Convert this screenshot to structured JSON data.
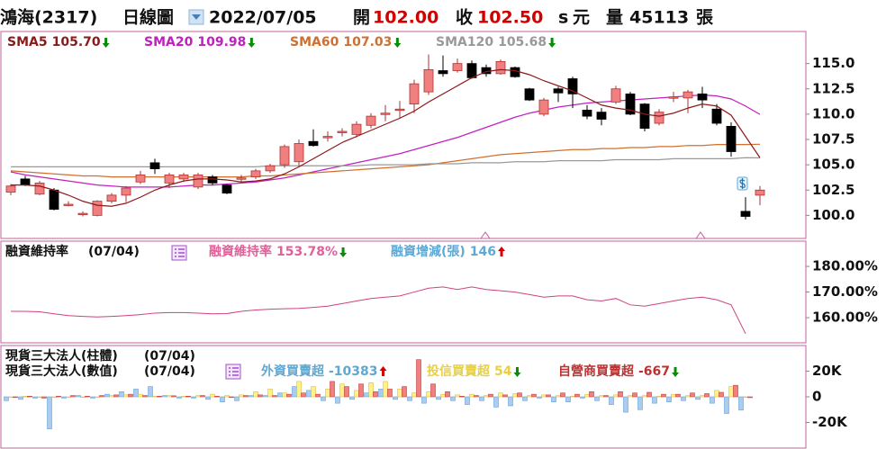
{
  "header": {
    "stock": "鴻海(2317)",
    "period": "日線圖",
    "date": "2022/07/05",
    "open_label": "開",
    "open": "102.00",
    "close_label": "收",
    "close": "102.50",
    "unit_s": "s",
    "unit": "元",
    "volume_label": "量",
    "volume": 45113,
    "volume_unit": "張"
  },
  "chart_data": [
    {
      "type": "candlestick",
      "up_color": "#f08080",
      "down_color": "#000000",
      "ylim": [
        97.9,
        117.9
      ],
      "yticks": [
        {
          "value": 100,
          "label": "100.0"
        },
        {
          "value": 102.5,
          "label": "102.5"
        },
        {
          "value": 105,
          "label": "105.0"
        },
        {
          "value": 107.5,
          "label": "107.5"
        },
        {
          "value": 110,
          "label": "110.0"
        },
        {
          "value": 112.5,
          "label": "112.5"
        },
        {
          "value": 115,
          "label": "115.0"
        }
      ],
      "open": [
        102.3,
        103.6,
        102.1,
        102.5,
        101.1,
        100.1,
        100.0,
        101.4,
        102.0,
        103.3,
        105.2,
        103.2,
        103.6,
        102.8,
        103.8,
        103.0,
        103.6,
        103.8,
        104.4,
        105.0,
        105.3,
        107.3,
        107.7,
        108.2,
        108.0,
        108.9,
        110.0,
        110.4,
        111.0,
        112.2,
        114.3,
        114.3,
        115.0,
        114.6,
        114.0,
        114.6,
        112.5,
        110.0,
        112.5,
        113.5,
        110.4,
        110.2,
        111.2,
        112.0,
        111.0,
        109.1,
        111.6,
        111.6,
        112.0,
        110.5,
        108.8,
        100.4,
        102.0
      ],
      "high": [
        103.1,
        103.9,
        103.4,
        102.7,
        101.4,
        100.4,
        101.5,
        102.2,
        102.9,
        104.4,
        105.6,
        104.2,
        104.2,
        104.2,
        104.0,
        103.1,
        104.0,
        104.6,
        105.1,
        107.0,
        107.5,
        108.5,
        108.3,
        108.6,
        109.3,
        110.1,
        110.9,
        111.3,
        113.4,
        115.9,
        115.8,
        115.5,
        115.3,
        114.9,
        115.4,
        114.7,
        112.6,
        111.6,
        112.7,
        113.7,
        110.9,
        110.6,
        112.8,
        112.2,
        111.1,
        110.5,
        112.2,
        112.4,
        112.7,
        111.0,
        109.2,
        101.8,
        102.9
      ],
      "low": [
        102.0,
        102.9,
        102.0,
        100.5,
        100.9,
        99.9,
        99.9,
        101.2,
        101.3,
        103.1,
        104.1,
        102.7,
        103.3,
        102.6,
        103.0,
        102.1,
        103.2,
        103.6,
        104.2,
        104.7,
        104.9,
        106.8,
        107.3,
        107.8,
        107.7,
        108.6,
        109.3,
        109.6,
        110.1,
        111.9,
        113.7,
        114.1,
        113.5,
        113.7,
        113.9,
        113.6,
        111.3,
        109.8,
        111.2,
        110.6,
        109.5,
        108.9,
        111.0,
        109.9,
        108.3,
        108.9,
        111.2,
        110.1,
        110.6,
        108.9,
        105.8,
        99.6,
        101.0
      ],
      "close": [
        102.9,
        103.0,
        103.2,
        100.6,
        101.1,
        100.2,
        101.4,
        102.0,
        102.7,
        104.0,
        104.6,
        104.0,
        104.0,
        104.0,
        103.2,
        102.2,
        103.7,
        104.4,
        104.9,
        106.8,
        107.1,
        106.9,
        107.8,
        108.3,
        109.0,
        109.8,
        110.1,
        110.5,
        113.0,
        114.4,
        114.0,
        115.0,
        113.6,
        114.0,
        115.2,
        113.7,
        111.4,
        111.4,
        112.1,
        112.0,
        109.8,
        109.5,
        112.5,
        110.0,
        108.6,
        110.2,
        111.7,
        112.2,
        111.4,
        109.1,
        106.3,
        99.9,
        102.5
      ],
      "series": [
        {
          "name": "SMA5",
          "color": "#8b1a1a",
          "legend_value": "105.70",
          "arrow": "down",
          "values": [
            103.0,
            103.0,
            102.9,
            102.5,
            102.0,
            101.4,
            101.0,
            100.9,
            101.2,
            101.8,
            102.5,
            103.0,
            103.4,
            103.6,
            103.6,
            103.5,
            103.3,
            103.4,
            103.6,
            104.1,
            104.8,
            105.6,
            106.4,
            107.2,
            107.8,
            108.4,
            109.0,
            109.6,
            110.3,
            111.2,
            112.0,
            112.8,
            113.6,
            114.2,
            114.4,
            114.3,
            113.9,
            113.3,
            112.8,
            112.3,
            111.6,
            110.9,
            110.6,
            110.4,
            110.0,
            109.8,
            110.1,
            110.6,
            111.0,
            110.8,
            109.9,
            107.8,
            105.7
          ]
        },
        {
          "name": "SMA20",
          "color": "#c020c0",
          "legend_value": "109.98",
          "arrow": "down",
          "values": [
            104.3,
            104.0,
            103.8,
            103.6,
            103.4,
            103.2,
            103.0,
            102.9,
            102.8,
            102.8,
            102.8,
            102.8,
            102.9,
            103.0,
            103.0,
            103.1,
            103.2,
            103.3,
            103.5,
            103.7,
            104.0,
            104.3,
            104.6,
            104.9,
            105.2,
            105.5,
            105.8,
            106.1,
            106.5,
            106.9,
            107.3,
            107.7,
            108.2,
            108.7,
            109.2,
            109.7,
            110.1,
            110.4,
            110.7,
            110.9,
            111.1,
            111.2,
            111.3,
            111.4,
            111.5,
            111.6,
            111.7,
            111.8,
            111.9,
            111.8,
            111.5,
            110.8,
            109.98
          ]
        },
        {
          "name": "SMA60",
          "color": "#d07030",
          "legend_value": "107.03",
          "arrow": "down",
          "values": [
            104.4,
            104.3,
            104.2,
            104.1,
            104.0,
            103.9,
            103.9,
            103.8,
            103.8,
            103.8,
            103.8,
            103.8,
            103.8,
            103.8,
            103.8,
            103.8,
            103.8,
            103.9,
            103.9,
            104.0,
            104.1,
            104.2,
            104.3,
            104.4,
            104.5,
            104.6,
            104.7,
            104.8,
            104.9,
            105.0,
            105.2,
            105.4,
            105.6,
            105.8,
            106.0,
            106.1,
            106.2,
            106.3,
            106.4,
            106.5,
            106.5,
            106.6,
            106.6,
            106.7,
            106.7,
            106.8,
            106.8,
            106.9,
            106.9,
            107.0,
            107.0,
            107.0,
            107.03
          ]
        },
        {
          "name": "SMA120",
          "color": "#999999",
          "legend_value": "105.68",
          "arrow": "down",
          "values": [
            104.8,
            104.8,
            104.8,
            104.8,
            104.8,
            104.8,
            104.8,
            104.8,
            104.8,
            104.8,
            104.8,
            104.8,
            104.8,
            104.8,
            104.8,
            104.8,
            104.8,
            104.8,
            104.9,
            104.9,
            104.9,
            104.9,
            104.9,
            104.9,
            104.9,
            105.0,
            105.0,
            105.0,
            105.0,
            105.1,
            105.1,
            105.1,
            105.2,
            105.2,
            105.2,
            105.3,
            105.3,
            105.3,
            105.4,
            105.4,
            105.4,
            105.4,
            105.5,
            105.5,
            105.5,
            105.5,
            105.6,
            105.6,
            105.6,
            105.6,
            105.6,
            105.7,
            105.68
          ]
        }
      ]
    },
    {
      "type": "line",
      "title": "融資維持率",
      "date": "(07/04)",
      "ylim": [
        150.9,
        188.8
      ],
      "yticks": [
        {
          "value": 160,
          "label": "160.00%"
        },
        {
          "value": 170,
          "label": "170.00%"
        },
        {
          "value": 180,
          "label": "180.00%"
        }
      ],
      "legend": [
        {
          "name": "融資維持率",
          "value": "153.78%",
          "color": "#e0609a",
          "arrow": "down"
        },
        {
          "name": "融資增減(張)",
          "value": "146",
          "color": "#5fa8d3",
          "arrow": "up"
        }
      ],
      "series": [
        {
          "name": "融資維持率",
          "color": "#d04080",
          "values": [
            162.5,
            162.5,
            162.3,
            161.5,
            160.8,
            160.5,
            160.3,
            160.5,
            160.8,
            161.2,
            161.8,
            162.0,
            162.0,
            161.8,
            161.5,
            161.6,
            162.5,
            163.0,
            163.3,
            163.5,
            163.6,
            164.0,
            164.5,
            165.5,
            166.5,
            167.5,
            168.0,
            168.5,
            170.0,
            171.5,
            172.0,
            171.0,
            172.0,
            171.0,
            170.5,
            170.0,
            169.0,
            168.0,
            168.5,
            168.5,
            167.0,
            166.5,
            167.5,
            165.0,
            164.5,
            165.5,
            166.5,
            167.5,
            168.0,
            167.0,
            165.0,
            153.78,
            null
          ]
        }
      ]
    },
    {
      "type": "bar",
      "title": "現貨三大法人(柱體)",
      "title2": "現貨三大法人(數值)",
      "date": "(07/04)",
      "date2": "(07/04)",
      "ylim": [
        -39300,
        37900
      ],
      "yticks": [
        {
          "value": -20000,
          "label": "-20K"
        },
        0,
        {
          "value": 20000,
          "label": "20K"
        }
      ],
      "series": [
        {
          "name": "外資買賣超",
          "color": "#a9cdf0",
          "stroke": "#6a9fd0",
          "text_color": "#5fa8d3",
          "arrow": "up",
          "values": [
            -3000,
            -2000,
            -1000,
            -25000,
            -1000,
            1000,
            -1000,
            2000,
            4000,
            6000,
            8000,
            1000,
            -1000,
            -1000,
            -2000,
            -4000,
            -3000,
            1000,
            1000,
            3000,
            8000,
            5000,
            -3000,
            -5000,
            -2000,
            3000,
            6000,
            -2000,
            -3000,
            -5000,
            -2000,
            -3000,
            -6000,
            -3000,
            -8000,
            -7000,
            -3000,
            -1000,
            -4000,
            -4000,
            -1000,
            -3000,
            -6000,
            -12000,
            -10000,
            -5000,
            -4000,
            -3000,
            -2000,
            -5000,
            -13000,
            -10383,
            null
          ]
        },
        {
          "name": "投信買賣超",
          "color": "#fff08a",
          "stroke": "#d4c24a",
          "text_color": "#e8d040",
          "arrow": "down",
          "values": [
            0,
            500,
            0,
            0,
            0,
            0,
            0,
            1000,
            1500,
            2000,
            500,
            1000,
            500,
            1000,
            2000,
            1000,
            1500,
            4000,
            6000,
            3000,
            12000,
            8000,
            6000,
            10000,
            5000,
            11000,
            12000,
            6000,
            3000,
            4000,
            2000,
            1500,
            2000,
            1000,
            3000,
            2500,
            1000,
            1500,
            1000,
            500,
            2000,
            1000,
            1500,
            1000,
            1000,
            500,
            2000,
            1000,
            1000,
            5000,
            8000,
            54,
            null
          ]
        },
        {
          "name": "自營商買賣超",
          "color": "#f08080",
          "stroke": "#c04040",
          "text_color": "#c03030",
          "arrow": "down",
          "values": [
            -500,
            500,
            -1000,
            500,
            1000,
            500,
            1000,
            1500,
            2000,
            1000,
            500,
            800,
            500,
            1000,
            500,
            -500,
            1000,
            1500,
            1000,
            2000,
            3000,
            2000,
            12000,
            8000,
            10000,
            4000,
            6000,
            8000,
            29000,
            10000,
            4000,
            500,
            1000,
            2000,
            1500,
            3000,
            2000,
            1500,
            3000,
            2000,
            4000,
            1000,
            4000,
            3000,
            3500,
            2000,
            2000,
            3000,
            2500,
            3500,
            9000,
            -667,
            null
          ]
        }
      ]
    }
  ]
}
